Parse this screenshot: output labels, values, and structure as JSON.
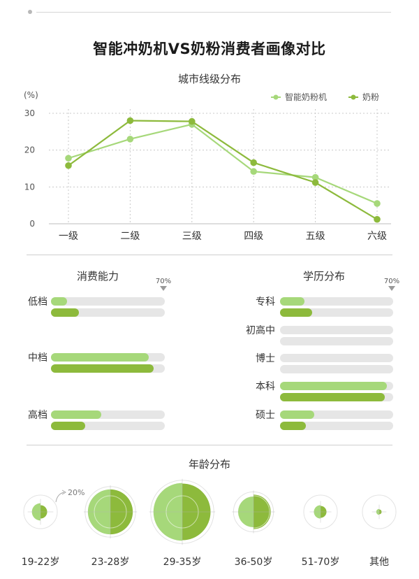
{
  "page": {
    "title": "智能冲奶机VS奶粉消费者画像对比"
  },
  "colors": {
    "series_a": "#a6d87a",
    "series_b": "#8dba3c",
    "track": "#e6e6e6"
  },
  "chart_data": [
    {
      "type": "line",
      "title": "城市线级分布",
      "ylabel": "(%)",
      "ylim": [
        0,
        30
      ],
      "yticks": [
        0,
        10,
        20,
        30
      ],
      "categories": [
        "一级",
        "二级",
        "三级",
        "四级",
        "五级",
        "六级"
      ],
      "legend_position": "top-right",
      "grid": true,
      "series": [
        {
          "name": "智能奶粉机",
          "values": [
            17.8,
            23,
            27,
            14.2,
            12.6,
            5.5
          ]
        },
        {
          "name": "奶粉",
          "values": [
            15.8,
            28,
            27.8,
            16.6,
            11.2,
            1.2
          ]
        }
      ]
    },
    {
      "type": "bar",
      "orientation": "horizontal",
      "title": "消费能力",
      "max_marker": "70%",
      "categories": [
        "低档",
        "中档",
        "高档"
      ],
      "series": [
        {
          "values": [
            10,
            60,
            31
          ]
        },
        {
          "values": [
            17,
            63,
            21
          ]
        }
      ]
    },
    {
      "type": "bar",
      "orientation": "horizontal",
      "title": "学历分布",
      "max_marker": "70%",
      "categories": [
        "专科",
        "初高中",
        "博士",
        "本科",
        "硕士"
      ],
      "series": [
        {
          "values": [
            15,
            0,
            0,
            66,
            21
          ]
        },
        {
          "values": [
            20,
            0,
            0,
            65,
            16
          ]
        }
      ]
    },
    {
      "type": "bubble",
      "title": "年龄分布",
      "annotation": "20%",
      "categories": [
        "19-22岁",
        "23-28岁",
        "29-35岁",
        "36-50岁",
        "51-70岁",
        "其他"
      ],
      "series": [
        {
          "values": [
            2.5,
            17,
            28,
            8,
            1.5,
            0.3
          ]
        },
        {
          "values": [
            1.5,
            17,
            27,
            10,
            1.2,
            0.2
          ]
        }
      ]
    }
  ]
}
